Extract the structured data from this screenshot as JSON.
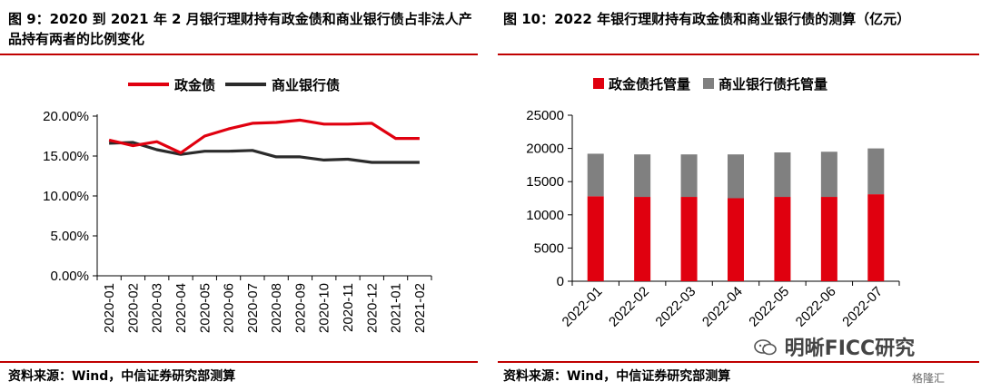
{
  "left": {
    "title": "图 9：2020 到 2021 年 2 月银行理财持有政金债和商业银行债占非法人产品持有两者的比例变化",
    "source": "资料来源：Wind，中信证券研究部测算"
  },
  "right": {
    "title": "图 10：2022 年银行理财持有政金债和商业银行债的测算（亿元）",
    "source": "资料来源：Wind，中信证券研究部测算"
  },
  "watermark": {
    "text": "明晰FICC研究",
    "sub": "格隆汇",
    "icon": "wechat-icon"
  },
  "colors": {
    "red": "#e0000f",
    "dark": "#2b2b2b",
    "gray": "#808080",
    "rule": "#c00000"
  },
  "chart_data": [
    {
      "type": "line",
      "x": [
        "2020-01",
        "2020-02",
        "2020-03",
        "2020-04",
        "2020-05",
        "2020-06",
        "2020-07",
        "2020-08",
        "2020-09",
        "2020-10",
        "2020-11",
        "2020-12",
        "2021-01",
        "2021-02"
      ],
      "series": [
        {
          "name": "政金债",
          "values": [
            17.0,
            16.3,
            16.8,
            15.4,
            17.5,
            18.4,
            19.1,
            19.2,
            19.5,
            19.0,
            19.0,
            19.1,
            17.2,
            17.2
          ]
        },
        {
          "name": "商业银行债",
          "values": [
            16.6,
            16.7,
            15.8,
            15.2,
            15.6,
            15.6,
            15.7,
            14.9,
            14.9,
            14.5,
            14.6,
            14.2,
            14.2,
            14.2
          ]
        }
      ],
      "yticks": [
        "20.00%",
        "15.00%",
        "10.00%",
        "5.00%",
        "0.00%"
      ],
      "ylim": [
        0,
        20
      ],
      "legend_position": "top",
      "grid": false
    },
    {
      "type": "bar",
      "stacked": true,
      "categories": [
        "2022-01",
        "2022-02",
        "2022-03",
        "2022-04",
        "2022-05",
        "2022-06",
        "2022-07"
      ],
      "series": [
        {
          "name": "政金债托管量",
          "values": [
            12800,
            12700,
            12700,
            12500,
            12700,
            12700,
            13100
          ]
        },
        {
          "name": "商业银行债托管量",
          "values": [
            6400,
            6400,
            6400,
            6600,
            6700,
            6800,
            6900
          ]
        }
      ],
      "yticks": [
        "25000",
        "20000",
        "15000",
        "10000",
        "5000",
        "0"
      ],
      "ylim": [
        0,
        25000
      ],
      "legend_position": "top",
      "grid": false
    }
  ]
}
